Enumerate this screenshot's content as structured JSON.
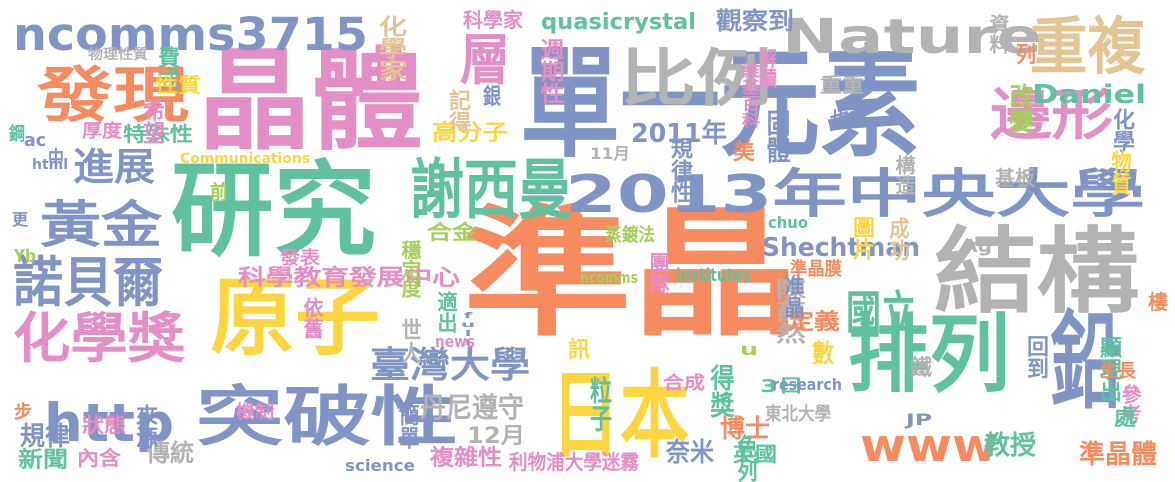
{
  "palette": {
    "orange": "#f68b5f",
    "green": "#5fc19f",
    "blue": "#8094c5",
    "pink": "#e38ec4",
    "lime": "#a4d058",
    "yellow": "#fdd53f",
    "tan": "#e5c494",
    "gray": "#b3b3b3"
  },
  "words": [
    {
      "text": "準晶",
      "color": "orange"
    },
    {
      "text": "晶體",
      "color": "pink"
    },
    {
      "text": "研究",
      "color": "green"
    },
    {
      "text": "單一元素",
      "color": "blue"
    },
    {
      "text": "結構",
      "color": "gray"
    },
    {
      "text": "原子",
      "color": "yellow"
    },
    {
      "text": "ncomms3715",
      "color": "blue"
    },
    {
      "text": "Nature",
      "color": "gray"
    },
    {
      "text": "比例",
      "color": "gray"
    },
    {
      "text": "2013年中央大學",
      "color": "blue"
    },
    {
      "text": "重複",
      "color": "tan"
    },
    {
      "text": "排列",
      "color": "green"
    },
    {
      "text": "謝西曼",
      "color": "green"
    },
    {
      "text": "突破性",
      "color": "blue"
    },
    {
      "text": "日本",
      "color": "yellow"
    },
    {
      "text": "發現",
      "color": "orange"
    },
    {
      "text": "黃金",
      "color": "blue"
    },
    {
      "text": "諾貝爾",
      "color": "blue"
    },
    {
      "text": "化學獎",
      "color": "pink"
    },
    {
      "text": "http",
      "color": "blue"
    },
    {
      "text": "www",
      "color": "orange"
    },
    {
      "text": "鉛",
      "color": "blue"
    },
    {
      "text": "邊形",
      "color": "pink"
    },
    {
      "text": "層",
      "color": "pink"
    },
    {
      "text": "進展",
      "color": "blue"
    },
    {
      "text": "臺灣大學",
      "color": "blue"
    },
    {
      "text": "國立",
      "color": "green"
    },
    {
      "text": "Shechtman",
      "color": "blue"
    },
    {
      "text": "科學教育發展中心",
      "color": "pink"
    },
    {
      "text": "陳藹然",
      "color": "gray"
    },
    {
      "text": "quasicrystal",
      "color": "green"
    },
    {
      "text": "化學家",
      "color": "tan"
    },
    {
      "text": "週期性",
      "color": "pink"
    },
    {
      "text": "觀察到",
      "color": "blue"
    },
    {
      "text": "科學家",
      "color": "pink"
    },
    {
      "text": "Daniel",
      "color": "green"
    },
    {
      "text": "改變",
      "color": "lime"
    },
    {
      "text": "2011年",
      "color": "blue"
    },
    {
      "text": "固體",
      "color": "blue"
    },
    {
      "text": "規律性",
      "color": "blue"
    },
    {
      "text": "高分子",
      "color": "yellow"
    },
    {
      "text": "記得",
      "color": "tan"
    },
    {
      "text": "特殊性",
      "color": "green"
    },
    {
      "text": "合金",
      "color": "lime"
    },
    {
      "text": "穩定度",
      "color": "lime"
    },
    {
      "text": "丹尼遵守",
      "color": "gray"
    },
    {
      "text": "世人",
      "color": "gray"
    },
    {
      "text": "粒子",
      "color": "green"
    },
    {
      "text": "得獎",
      "color": "green"
    },
    {
      "text": "博士",
      "color": "orange"
    },
    {
      "text": "3日",
      "color": "green"
    },
    {
      "text": "色列",
      "color": "green"
    },
    {
      "text": "12月",
      "color": "gray"
    },
    {
      "text": "新聞",
      "color": "green"
    },
    {
      "text": "內含",
      "color": "pink"
    },
    {
      "text": "傳統",
      "color": "gray"
    },
    {
      "text": "複雜性",
      "color": "pink"
    },
    {
      "text": "簡單",
      "color": "blue"
    },
    {
      "text": "利物浦大學迷霧",
      "color": "pink"
    },
    {
      "text": "奈米",
      "color": "blue"
    },
    {
      "text": "英國",
      "color": "green"
    },
    {
      "text": "教授",
      "color": "green"
    },
    {
      "text": "準晶體",
      "color": "orange"
    },
    {
      "text": "顯現出",
      "color": "green"
    },
    {
      "text": "回到",
      "color": "blue"
    },
    {
      "text": "定義",
      "color": "orange"
    },
    {
      "text": "數",
      "color": "yellow"
    },
    {
      "text": "准晶",
      "color": "blue"
    },
    {
      "text": "規律",
      "color": "blue"
    },
    {
      "text": "狀態",
      "color": "pink"
    },
    {
      "text": "來源",
      "color": "blue"
    },
    {
      "text": "費式",
      "color": "green"
    },
    {
      "text": "性質",
      "color": "yellow"
    },
    {
      "text": "希望",
      "color": "pink"
    },
    {
      "text": "厚度",
      "color": "pink"
    },
    {
      "text": "物理性質",
      "color": "gray"
    },
    {
      "text": "Communications",
      "color": "yellow"
    },
    {
      "text": "html",
      "color": "blue"
    },
    {
      "text": "ac",
      "color": "blue"
    },
    {
      "text": "鋼",
      "color": "green"
    },
    {
      "text": "中",
      "color": "blue"
    },
    {
      "text": "更",
      "color": "blue"
    },
    {
      "text": "Yb",
      "color": "lime"
    },
    {
      "text": "11月",
      "color": "gray"
    },
    {
      "text": "美",
      "color": "orange"
    },
    {
      "text": "維基百科",
      "color": "pink"
    },
    {
      "text": "重重",
      "color": "gray"
    },
    {
      "text": "也許",
      "color": "blue"
    },
    {
      "text": "化學",
      "color": "blue"
    },
    {
      "text": "物質",
      "color": "yellow"
    },
    {
      "text": "基板",
      "color": "gray"
    },
    {
      "text": "資料",
      "color": "gray"
    },
    {
      "text": "解讀",
      "color": "pink"
    },
    {
      "text": "列",
      "color": "orange"
    },
    {
      "text": "銀",
      "color": "blue"
    },
    {
      "text": "構造",
      "color": "gray"
    },
    {
      "text": "前",
      "color": "lime"
    },
    {
      "text": "chuo",
      "color": "green"
    },
    {
      "text": "圖片",
      "color": "yellow"
    },
    {
      "text": "成功",
      "color": "tan"
    },
    {
      "text": "Ag",
      "color": "gray"
    },
    {
      "text": "蒸鍍法",
      "color": "lime"
    },
    {
      "text": "團隊",
      "color": "pink"
    },
    {
      "text": "institutes",
      "color": "green"
    },
    {
      "text": "準晶膜",
      "color": "orange"
    },
    {
      "text": "ncomms",
      "color": "lime"
    },
    {
      "text": "適出",
      "color": "green"
    },
    {
      "text": "依舊",
      "color": "pink"
    },
    {
      "text": "full",
      "color": "blue"
    },
    {
      "text": "news",
      "color": "pink"
    },
    {
      "text": "u",
      "color": "lime"
    },
    {
      "text": "訊",
      "color": "yellow"
    },
    {
      "text": "發表",
      "color": "pink"
    },
    {
      "text": "機制",
      "color": "pink"
    },
    {
      "text": "合成",
      "color": "pink"
    },
    {
      "text": "research",
      "color": "blue"
    },
    {
      "text": "東北大學",
      "color": "gray"
    },
    {
      "text": "JP",
      "color": "blue"
    },
    {
      "text": "鐵",
      "color": "gray"
    },
    {
      "text": "生長",
      "color": "orange"
    },
    {
      "text": "參考",
      "color": "pink"
    },
    {
      "text": "處",
      "color": "green"
    },
    {
      "text": "樓",
      "color": "orange"
    },
    {
      "text": "步",
      "color": "orange"
    },
    {
      "text": "science",
      "color": "blue"
    }
  ]
}
